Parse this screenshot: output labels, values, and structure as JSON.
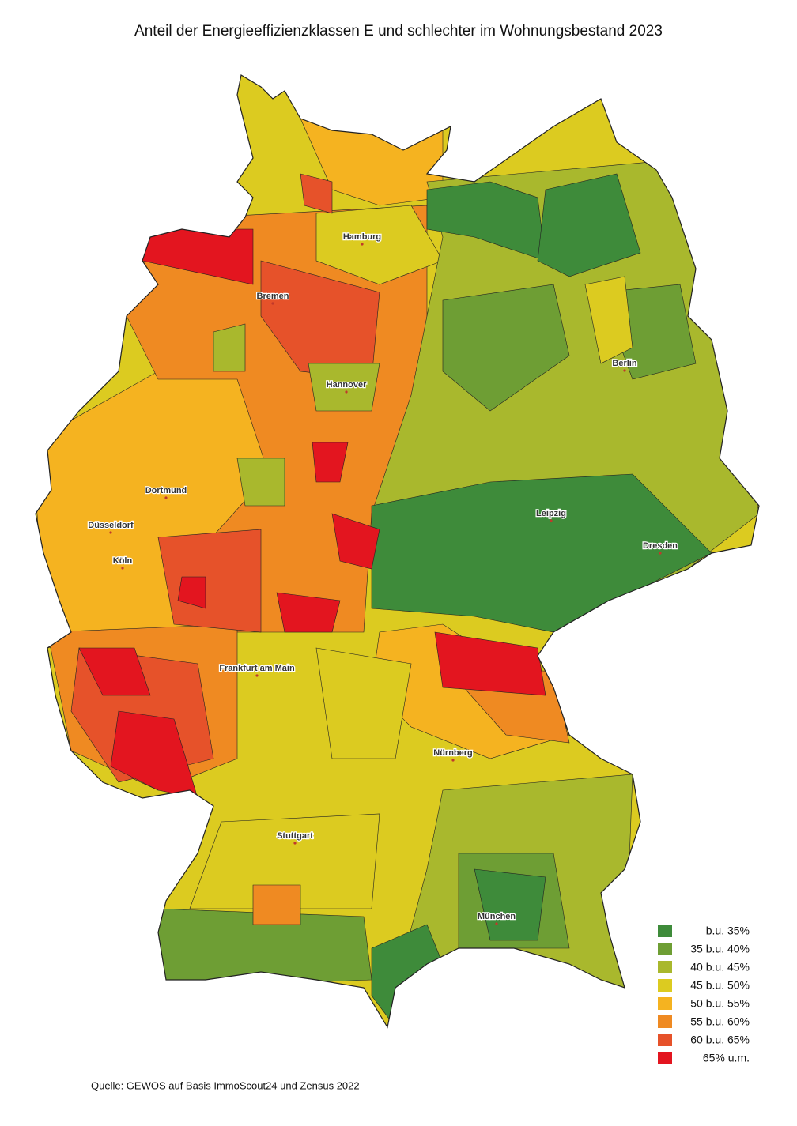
{
  "title": "Anteil der Energieeffizienzklassen E und schlechter im Wohnungsbestand 2023",
  "source": "Quelle: GEWOS auf Basis ImmoScout24 und Zensus 2022",
  "legend": [
    {
      "label": "b.u. 35%",
      "color": "#3e8b3a"
    },
    {
      "label": "35 b.u. 40%",
      "color": "#6e9e34"
    },
    {
      "label": "40 b.u. 45%",
      "color": "#a9b82d"
    },
    {
      "label": "45 b.u. 50%",
      "color": "#dccb20"
    },
    {
      "label": "50 b.u. 55%",
      "color": "#f5b320"
    },
    {
      "label": "55 b.u. 60%",
      "color": "#ef8a22"
    },
    {
      "label": "60 b.u. 65%",
      "color": "#e6522a"
    },
    {
      "label": "65% u.m.",
      "color": "#e3151f"
    }
  ],
  "cities": [
    "Hamburg",
    "Bremen",
    "Berlin",
    "Hannover",
    "Dortmund",
    "Düsseldorf",
    "Köln",
    "Leipzig",
    "Dresden",
    "Frankfurt am Main",
    "Nürnberg",
    "Stuttgart",
    "München"
  ]
}
